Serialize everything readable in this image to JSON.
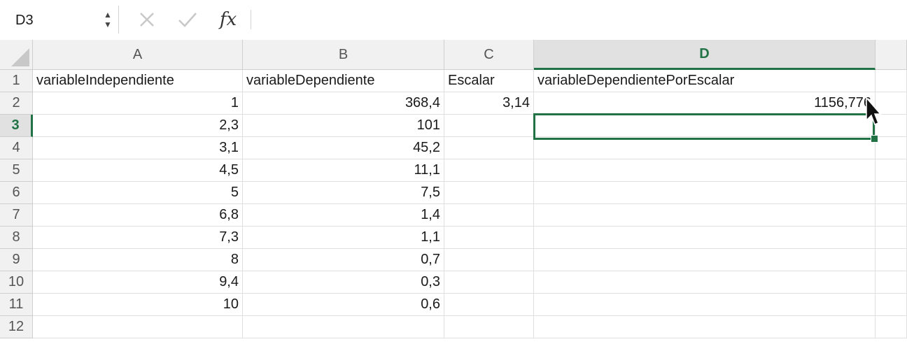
{
  "name_box": {
    "value": "D3"
  },
  "formula": {
    "fx_label": "fx",
    "value": ""
  },
  "columns": [
    "A",
    "B",
    "C",
    "D"
  ],
  "selected_column": "D",
  "rows": [
    "1",
    "2",
    "3",
    "4",
    "5",
    "6",
    "7",
    "8",
    "9",
    "10",
    "11",
    "12"
  ],
  "selected_row": "3",
  "cells": {
    "A1": "variableIndependiente",
    "B1": "variableDependiente",
    "C1": "Escalar",
    "D1": "variableDependientePorEscalar",
    "A2": "1",
    "B2": "368,4",
    "C2": "3,14",
    "D2": "1156,776",
    "A3": "2,3",
    "B3": "101",
    "A4": "3,1",
    "B4": "45,2",
    "A5": "4,5",
    "B5": "11,1",
    "A6": "5",
    "B6": "7,5",
    "A7": "6,8",
    "B7": "1,4",
    "A8": "7,3",
    "B8": "1,1",
    "A9": "8",
    "B9": "0,7",
    "A10": "9,4",
    "B10": "0,3",
    "A11": "10",
    "B11": "0,6"
  },
  "colors": {
    "accent": "#217346",
    "header_bg": "#f1f1f1",
    "gridline": "#e0e0e0"
  }
}
